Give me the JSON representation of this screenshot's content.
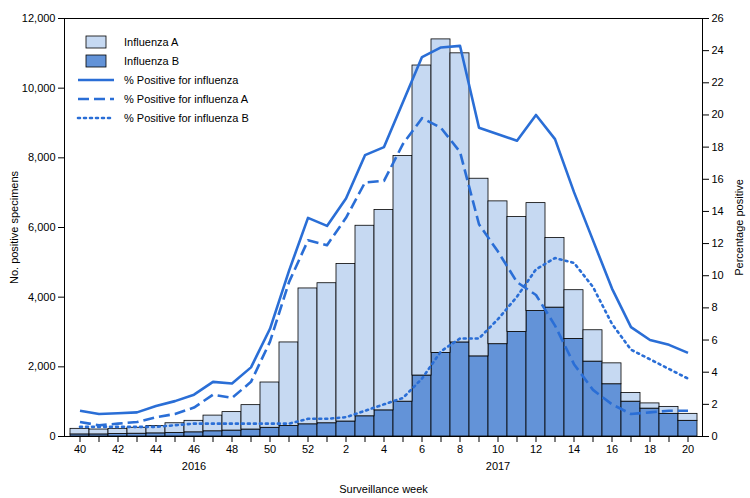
{
  "chart_data": {
    "type": "bar",
    "stacked": true,
    "grid": false,
    "legend": "top-left",
    "xlabel": "Surveillance week",
    "ylabel": "No. positive specimens",
    "y2label": "Percentage positive",
    "categories": [
      40,
      null,
      42,
      null,
      44,
      null,
      46,
      null,
      48,
      null,
      50,
      null,
      52,
      null,
      2,
      null,
      4,
      null,
      6,
      null,
      8,
      null,
      10,
      null,
      12,
      null,
      14,
      null,
      16,
      null,
      18,
      null,
      20
    ],
    "ylim": [
      0,
      12000
    ],
    "yticks": [
      0,
      {
        "value": 2000,
        "label": "2,000"
      },
      {
        "value": 4000,
        "label": "4,000"
      },
      {
        "value": 6000,
        "label": "6,000"
      },
      {
        "value": 8000,
        "label": "8,000"
      },
      {
        "value": 10000,
        "label": "10,000"
      },
      {
        "value": 12000,
        "label": "12,000"
      }
    ],
    "y2lim": [
      0,
      26
    ],
    "y2ticks": [
      0,
      2,
      4,
      6,
      8,
      10,
      12,
      14,
      16,
      18,
      20,
      22,
      24,
      26
    ],
    "annotations": [
      {
        "text": "2016",
        "x": 46
      },
      {
        "text": "2017",
        "x": 10
      }
    ],
    "series": [
      {
        "name": "Influenza A",
        "type": "bar",
        "color": "#c6d9f2",
        "values": [
          160,
          140,
          150,
          170,
          210,
          280,
          330,
          450,
          530,
          700,
          1300,
          2400,
          3900,
          4020,
          4520,
          5470,
          5750,
          7050,
          8900,
          9000,
          8300,
          5100,
          4100,
          3300,
          3100,
          2000,
          1400,
          900,
          600,
          250,
          150,
          200,
          200
        ]
      },
      {
        "name": "Influenza B",
        "type": "bar",
        "color": "#6393d8",
        "values": [
          60,
          60,
          70,
          80,
          90,
          100,
          120,
          150,
          170,
          200,
          250,
          300,
          350,
          380,
          430,
          580,
          750,
          1000,
          1750,
          2400,
          2700,
          2300,
          2650,
          3000,
          3600,
          3700,
          2800,
          2150,
          1500,
          1000,
          800,
          650,
          450
        ]
      },
      {
        "name": "% Positive for influenza",
        "type": "line",
        "axis": "y2",
        "line_style": "solid",
        "color": "#2a6ed6",
        "values": [
          1.6,
          1.4,
          1.45,
          1.5,
          1.9,
          2.2,
          2.6,
          3.4,
          3.3,
          4.3,
          6.7,
          10.3,
          13.6,
          13.1,
          14.8,
          17.5,
          18.0,
          20.8,
          23.6,
          24.2,
          24.3,
          19.2,
          18.8,
          18.4,
          20.0,
          18.5,
          15.2,
          12.2,
          9.2,
          6.8,
          6.0,
          5.7,
          5.2
        ]
      },
      {
        "name": "% Positive for influenza A",
        "type": "line",
        "axis": "y2",
        "line_style": "dashed",
        "color": "#2a6ed6",
        "values": [
          0.9,
          0.7,
          0.8,
          0.9,
          1.2,
          1.4,
          1.8,
          2.6,
          2.4,
          3.4,
          5.9,
          9.6,
          12.2,
          11.9,
          13.6,
          15.8,
          15.9,
          18.2,
          19.8,
          19.2,
          17.7,
          13.2,
          11.5,
          9.6,
          8.8,
          6.9,
          4.5,
          2.9,
          2.0,
          1.4,
          1.5,
          1.6,
          1.6
        ]
      },
      {
        "name": "% Positive for influenza B",
        "type": "line",
        "axis": "y2",
        "line_style": "dotted",
        "color": "#2a6ed6",
        "values": [
          0.6,
          0.6,
          0.6,
          0.6,
          0.6,
          0.7,
          0.8,
          0.8,
          0.8,
          0.8,
          0.8,
          0.8,
          1.1,
          1.1,
          1.2,
          1.6,
          2.0,
          2.4,
          3.6,
          5.3,
          6.1,
          6.1,
          7.3,
          8.7,
          10.4,
          11.1,
          10.8,
          9.3,
          7.0,
          5.4,
          4.8,
          4.2,
          3.6
        ]
      }
    ]
  }
}
